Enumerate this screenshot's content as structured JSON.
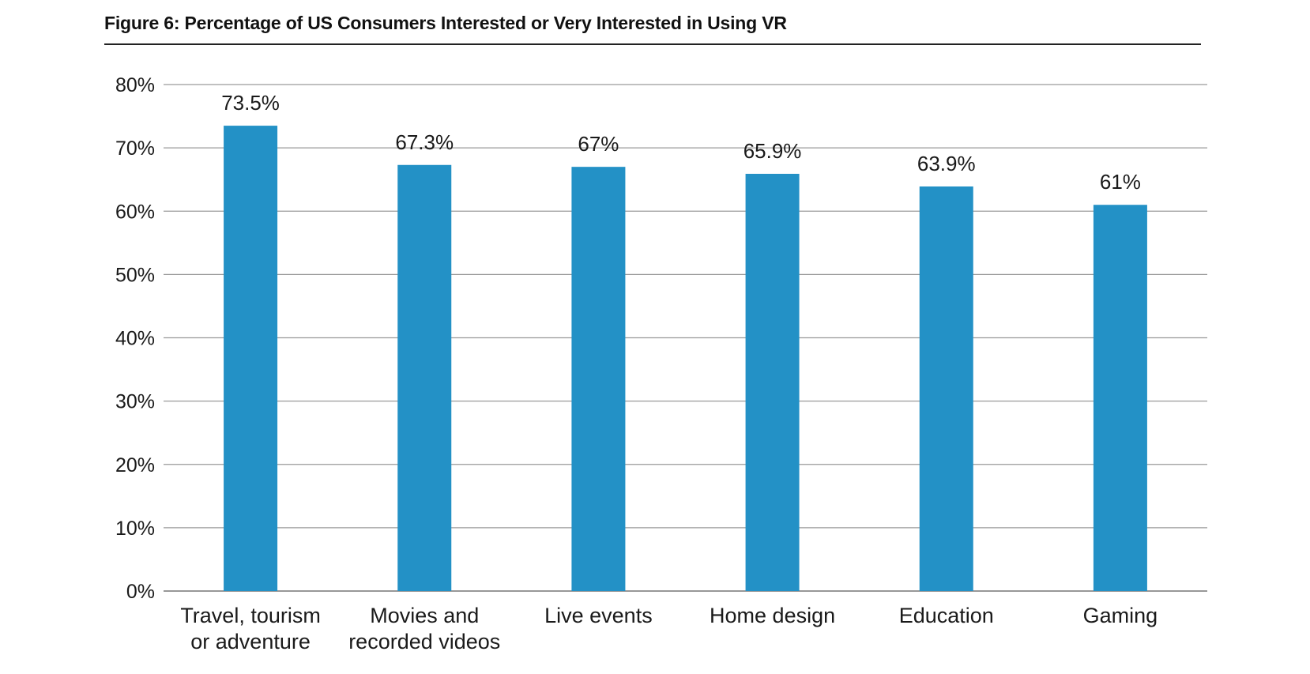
{
  "figure": {
    "title": "Figure 6: Percentage of US Consumers Interested or Very Interested in Using VR"
  },
  "colors": {
    "bar": "#2391c6",
    "grid": "#9a9a9a",
    "text": "#1a1a1a"
  },
  "chart_data": {
    "type": "bar",
    "title": "Figure 6: Percentage of US Consumers Interested or Very Interested in Using VR",
    "xlabel": "",
    "ylabel": "",
    "categories": [
      [
        "Travel, tourism",
        "or adventure"
      ],
      [
        "Movies and",
        "recorded videos"
      ],
      [
        "Live events"
      ],
      [
        "Home design"
      ],
      [
        "Education"
      ],
      [
        "Gaming"
      ]
    ],
    "values": [
      73.5,
      67.3,
      67,
      65.9,
      63.9,
      61
    ],
    "data_labels": [
      "73.5%",
      "67.3%",
      "67%",
      "65.9%",
      "63.9%",
      "61%"
    ],
    "ylim": [
      0,
      80
    ],
    "yticks": [
      0,
      10,
      20,
      30,
      40,
      50,
      60,
      70,
      80
    ],
    "ytick_labels": [
      "0%",
      "10%",
      "20%",
      "30%",
      "40%",
      "50%",
      "60%",
      "70%",
      "80%"
    ],
    "grid": true,
    "legend": "none"
  }
}
